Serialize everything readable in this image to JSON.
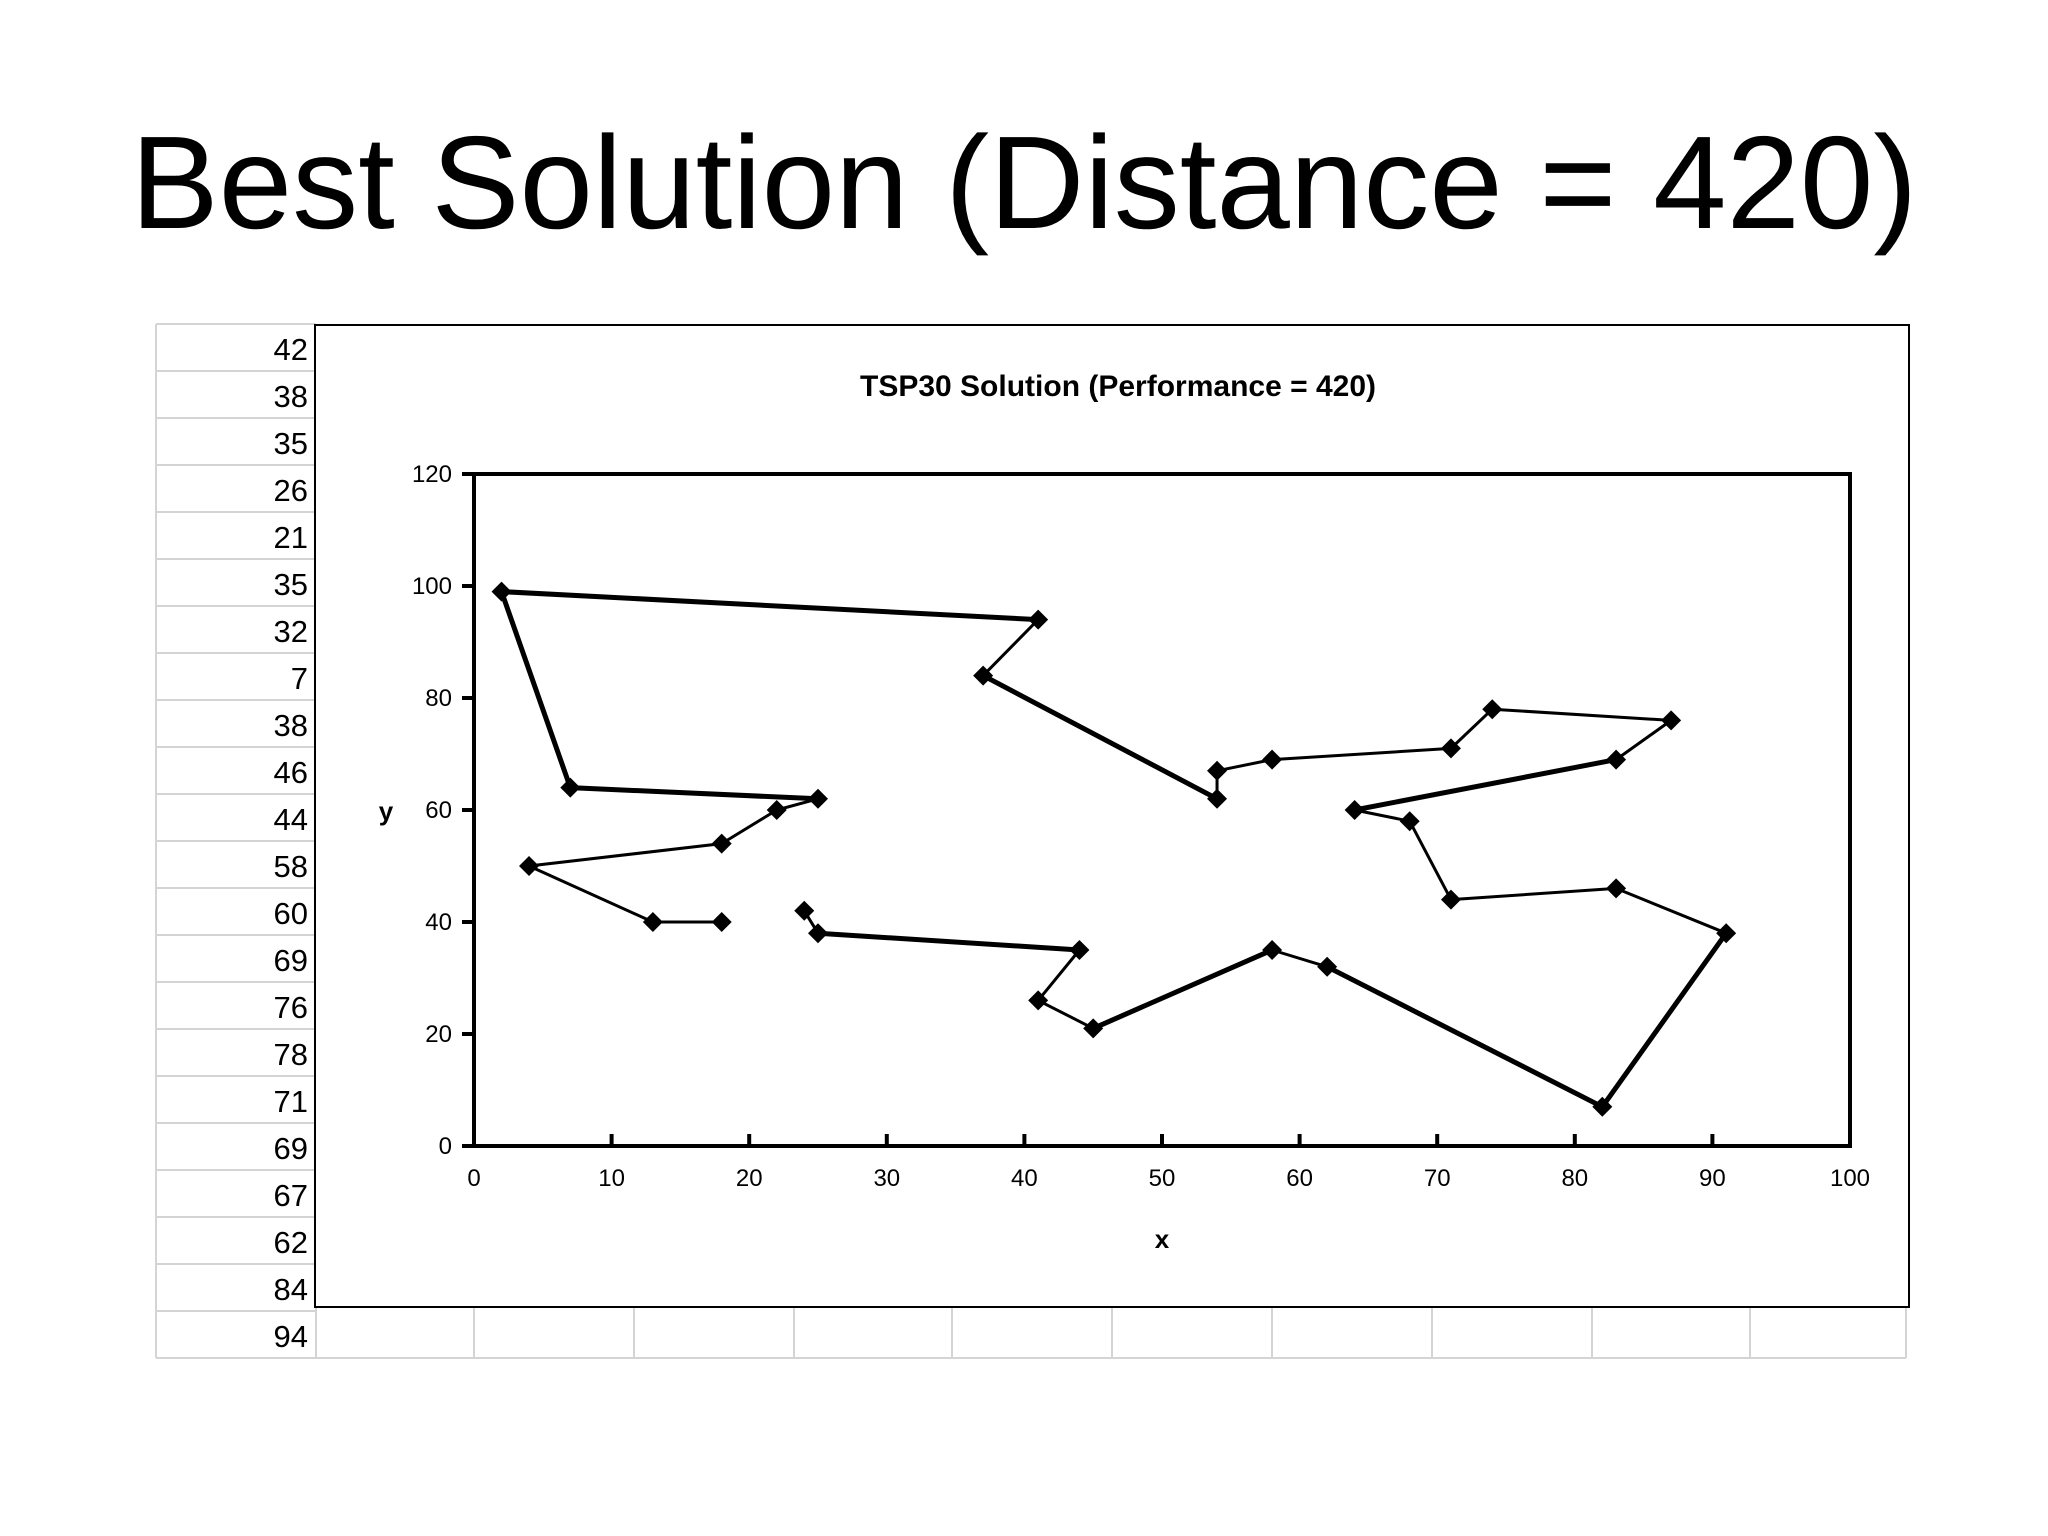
{
  "slide": {
    "title": "Best Solution (Distance = 420)"
  },
  "spreadsheet": {
    "row_values": [
      "42",
      "38",
      "35",
      "26",
      "21",
      "35",
      "32",
      "7",
      "38",
      "46",
      "44",
      "58",
      "60",
      "69",
      "76",
      "78",
      "71",
      "69",
      "67",
      "62",
      "84",
      "94"
    ],
    "gridline_color": "#d4d4d4"
  },
  "chart_data": {
    "type": "line",
    "title": "TSP30 Solution (Performance = 420)",
    "xlabel": "x",
    "ylabel": "y",
    "xlim": [
      0,
      100
    ],
    "ylim": [
      0,
      120
    ],
    "xticks": [
      0,
      10,
      20,
      30,
      40,
      50,
      60,
      70,
      80,
      90,
      100
    ],
    "yticks": [
      0,
      20,
      40,
      60,
      80,
      100,
      120
    ],
    "marker": "diamond",
    "grid": false,
    "legend": "none",
    "series": [
      {
        "x": [
          18,
          13,
          4,
          18,
          22,
          25,
          7,
          2,
          41,
          37,
          54,
          54,
          58,
          71,
          74,
          87,
          83,
          64,
          68,
          71,
          83,
          91,
          82,
          62,
          58,
          45,
          41,
          44,
          25,
          24
        ],
        "y": [
          40,
          40,
          50,
          54,
          60,
          62,
          64,
          99,
          94,
          84,
          62,
          67,
          69,
          71,
          78,
          76,
          69,
          60,
          58,
          44,
          46,
          38,
          7,
          32,
          35,
          21,
          26,
          35,
          38,
          42
        ]
      }
    ]
  }
}
